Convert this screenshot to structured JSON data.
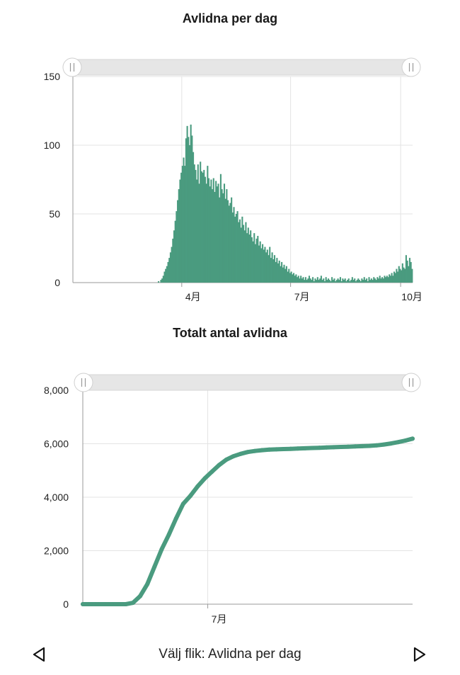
{
  "colors": {
    "series": "#4a9b7f",
    "grid": "#e3e3e3",
    "axis": "#9a9a9a",
    "slider_track": "#e6e6e6"
  },
  "footer": {
    "tab_label": "Välj flik: Avlidna per dag",
    "prev_icon": "triangle-left-icon",
    "next_icon": "triangle-right-icon"
  },
  "chart_data": [
    {
      "type": "bar",
      "title": "Avlidna per dag",
      "ylim": [
        0,
        150
      ],
      "yticks": [
        "0",
        "50",
        "100",
        "150"
      ],
      "xticks": [
        "4月",
        "7月",
        "10月"
      ],
      "start_date": "2020-01-01",
      "values": [
        0,
        0,
        0,
        0,
        0,
        0,
        0,
        0,
        0,
        0,
        0,
        0,
        0,
        0,
        0,
        0,
        0,
        0,
        0,
        0,
        0,
        0,
        0,
        0,
        0,
        0,
        0,
        0,
        0,
        0,
        0,
        0,
        0,
        0,
        0,
        0,
        0,
        0,
        0,
        0,
        0,
        0,
        0,
        0,
        0,
        0,
        0,
        0,
        0,
        0,
        0,
        0,
        0,
        0,
        0,
        0,
        0,
        0,
        0,
        0,
        0,
        0,
        0,
        0,
        0,
        0,
        0,
        0,
        0,
        0,
        0,
        1,
        0,
        2,
        3,
        5,
        8,
        10,
        12,
        15,
        18,
        22,
        26,
        32,
        38,
        45,
        52,
        60,
        68,
        75,
        80,
        85,
        91,
        85,
        105,
        114,
        106,
        100,
        115,
        107,
        95,
        86,
        82,
        75,
        86,
        72,
        88,
        81,
        80,
        82,
        77,
        72,
        85,
        76,
        70,
        75,
        68,
        76,
        66,
        74,
        70,
        72,
        62,
        79,
        68,
        65,
        72,
        61,
        68,
        60,
        56,
        58,
        62,
        51,
        55,
        48,
        50,
        52,
        44,
        46,
        40,
        48,
        42,
        38,
        44,
        36,
        40,
        35,
        38,
        33,
        30,
        36,
        28,
        32,
        34,
        27,
        30,
        25,
        28,
        24,
        26,
        22,
        24,
        20,
        26,
        18,
        22,
        17,
        20,
        15,
        18,
        14,
        16,
        12,
        15,
        11,
        13,
        10,
        12,
        8,
        10,
        7,
        8,
        6,
        7,
        5,
        6,
        4,
        5,
        3,
        5,
        3,
        4,
        2,
        4,
        2,
        3,
        5,
        3,
        2,
        4,
        1,
        3,
        2,
        4,
        2,
        3,
        5,
        2,
        3,
        1,
        4,
        2,
        3,
        2,
        1,
        4,
        2,
        3,
        1,
        2,
        3,
        2,
        4,
        1,
        3,
        2,
        3,
        1,
        2,
        3,
        1,
        2,
        4,
        2,
        3,
        1,
        2,
        3,
        2,
        1,
        3,
        2,
        4,
        2,
        3,
        1,
        4,
        2,
        3,
        2,
        4,
        3,
        2,
        4,
        3,
        5,
        3,
        4,
        3,
        5,
        4,
        5,
        4,
        6,
        5,
        7,
        5,
        8,
        7,
        10,
        8,
        12,
        10,
        9,
        14,
        11,
        10,
        20,
        16,
        12,
        18,
        15,
        10
      ]
    },
    {
      "type": "line",
      "title": "Totalt antal avlidna",
      "ylim": [
        0,
        8000
      ],
      "yticks": [
        "0",
        "2,000",
        "4,000",
        "6,000",
        "8,000"
      ],
      "xticks": [
        "7月"
      ],
      "start_date": "2020-03-01",
      "x_days": [
        0,
        7,
        14,
        21,
        28,
        35,
        42,
        49,
        56,
        63,
        70,
        77,
        84,
        91,
        98,
        105,
        112,
        119,
        126,
        133,
        140,
        147,
        154,
        161,
        168,
        175,
        182,
        189,
        196,
        203,
        210,
        217,
        224,
        231,
        238,
        245,
        252,
        259,
        266,
        273,
        280,
        287,
        294,
        301,
        308,
        315,
        322
      ],
      "values": [
        0,
        0,
        0,
        0,
        0,
        0,
        0,
        50,
        300,
        750,
        1400,
        2050,
        2600,
        3200,
        3750,
        4050,
        4400,
        4700,
        4950,
        5200,
        5400,
        5530,
        5620,
        5690,
        5730,
        5760,
        5780,
        5790,
        5800,
        5810,
        5820,
        5830,
        5840,
        5850,
        5860,
        5870,
        5880,
        5890,
        5900,
        5910,
        5920,
        5940,
        5970,
        6010,
        6060,
        6120,
        6190
      ]
    }
  ]
}
